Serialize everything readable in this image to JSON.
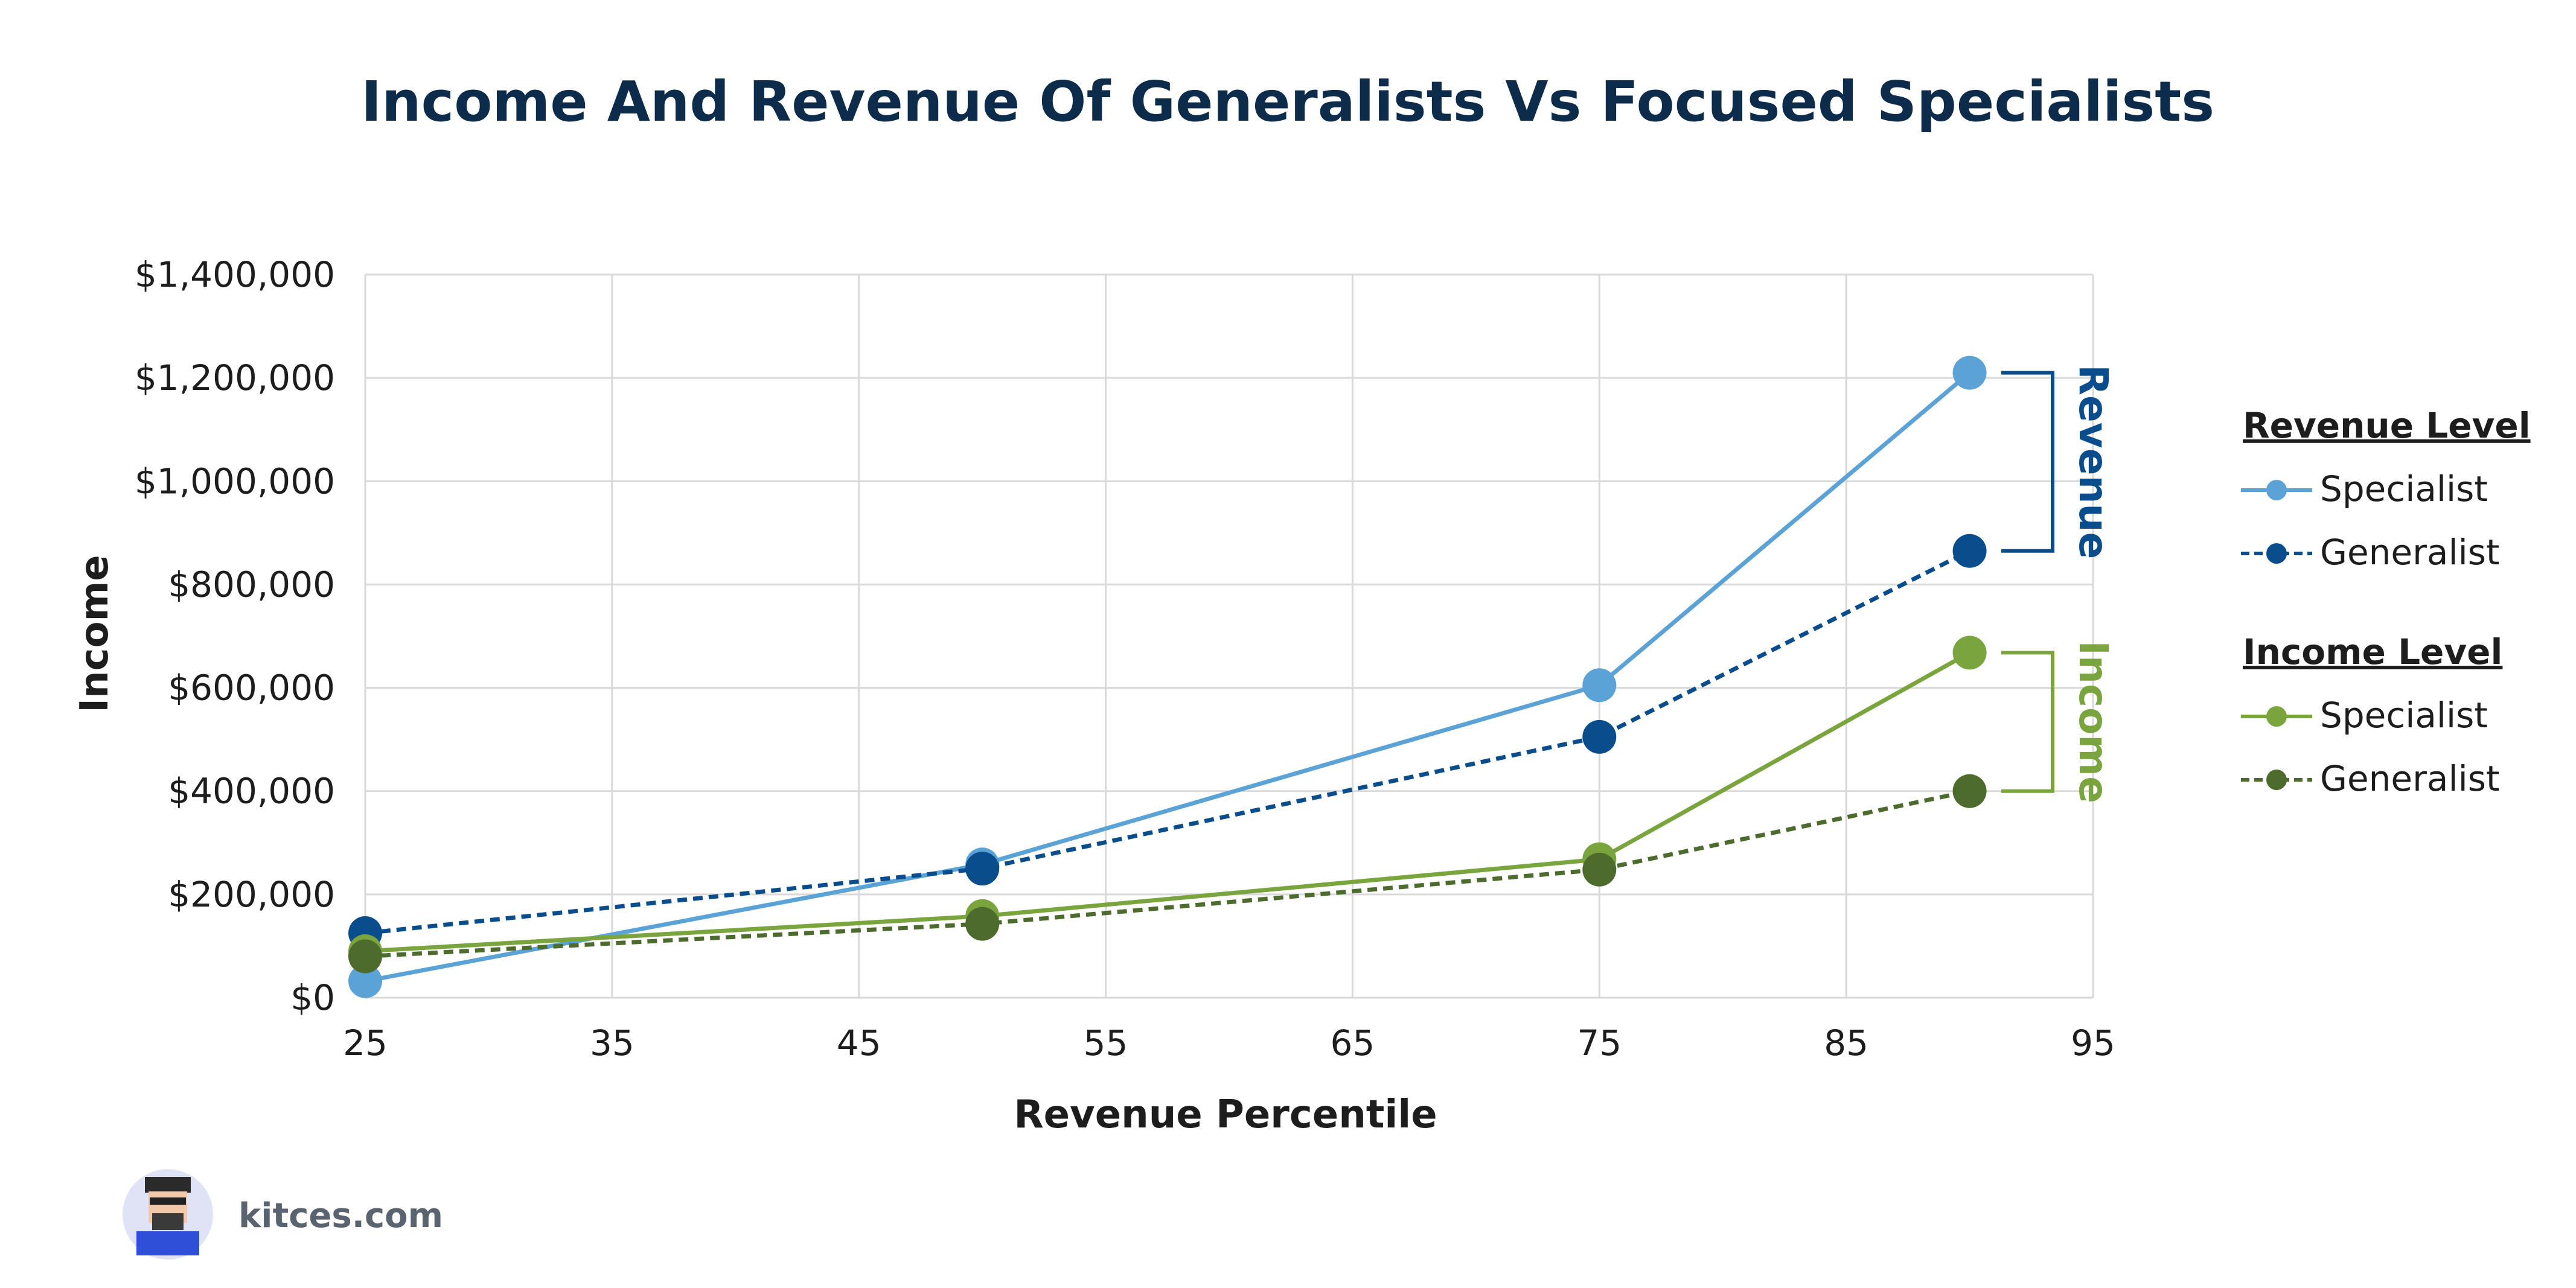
{
  "chart_data": {
    "type": "line",
    "title": "Income And Revenue Of Generalists Vs Focused Specialists",
    "xlabel": "Revenue Percentile",
    "ylabel": "Income",
    "xlim": [
      25,
      95
    ],
    "ylim": [
      0,
      1400000
    ],
    "x_ticks": [
      "25",
      "35",
      "45",
      "55",
      "65",
      "75",
      "85",
      "95"
    ],
    "y_ticks": [
      "$0",
      "$200,000",
      "$400,000",
      "$600,000",
      "$800,000",
      "$1,000,000",
      "$1,200,000",
      "$1,400,000"
    ],
    "grid": true,
    "legend_placement": "right",
    "x": [
      25,
      50,
      75,
      90
    ],
    "series": [
      {
        "group": "Revenue Level",
        "name": "Specialist",
        "color": "#5ba3d6",
        "dashed": false,
        "values": [
          32000,
          258000,
          605000,
          1210000
        ]
      },
      {
        "group": "Revenue Level",
        "name": "Generalist",
        "color": "#0a4d8c",
        "dashed": true,
        "values": [
          125000,
          250000,
          505000,
          865000
        ]
      },
      {
        "group": "Income Level",
        "name": "Specialist",
        "color": "#7aa53e",
        "dashed": false,
        "values": [
          90000,
          158000,
          268000,
          668000
        ]
      },
      {
        "group": "Income Level",
        "name": "Generalist",
        "color": "#4c6b2c",
        "dashed": true,
        "values": [
          80000,
          143000,
          248000,
          400000
        ]
      }
    ],
    "legend_groups": [
      "Revenue Level",
      "Income Level"
    ],
    "annotations": [
      {
        "text": "Revenue",
        "color": "#0a4d8c",
        "from": 1210000,
        "to": 865000
      },
      {
        "text": "Income",
        "color": "#7aa53e",
        "from": 668000,
        "to": 400000
      }
    ]
  },
  "branding": {
    "site": "kitces.com"
  }
}
